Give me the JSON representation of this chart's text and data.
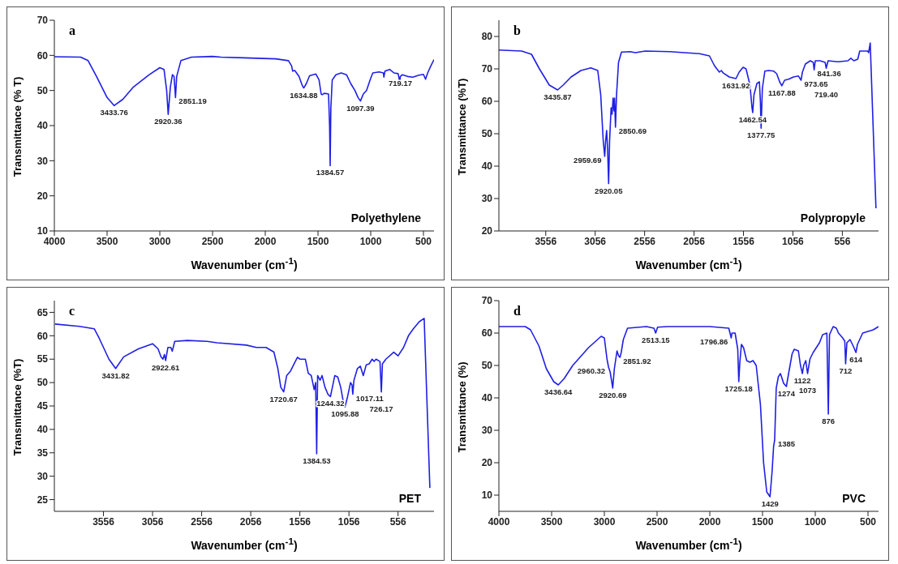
{
  "chart_data": [
    {
      "type": "line",
      "xlabel": "Wavenumber (cm$^{-1}$)",
      "ylabel": "Transmittance (% T)",
      "xlim": [
        4000,
        400
      ],
      "xticks": [
        4000,
        3500,
        3000,
        2500,
        2000,
        1500,
        1000,
        500
      ],
      "ylim": [
        10,
        70
      ],
      "yticks": [
        10,
        20,
        30,
        40,
        50,
        60,
        70
      ],
      "series": [
        {
          "color": "#1f1fe6",
          "x": [
            4000,
            3750,
            3680,
            3600,
            3500,
            3433.76,
            3350,
            3250,
            3100,
            3000,
            2960,
            2935,
            2920.36,
            2900,
            2880,
            2865,
            2851.19,
            2840,
            2800,
            2700,
            2500,
            2420,
            2200,
            1900,
            1780,
            1750,
            1740,
            1720,
            1680,
            1650,
            1634.88,
            1610,
            1580,
            1520,
            1490,
            1470,
            1460,
            1440,
            1400,
            1390,
            1384.57,
            1378,
            1365,
            1330,
            1280,
            1230,
            1190,
            1150,
            1120,
            1097.39,
            1070,
            1040,
            1000,
            980,
            920,
            880,
            875,
            865,
            820,
            780,
            740,
            725,
            719.17,
            700,
            650,
            600,
            550,
            500,
            480,
            460,
            430,
            400
          ],
          "values": [
            59.6,
            59.5,
            58.5,
            54,
            48,
            45.7,
            47.5,
            51,
            54.5,
            56.5,
            56,
            50,
            43.2,
            51,
            54.5,
            54,
            48,
            54,
            58.5,
            59.5,
            59.7,
            59.5,
            59.3,
            59,
            58.5,
            57,
            55.5,
            55.7,
            54,
            51.5,
            50.7,
            52,
            54.2,
            54.7,
            53,
            49,
            48.8,
            49.2,
            49,
            40,
            28.6,
            45,
            53,
            54.5,
            55,
            54.5,
            52,
            50,
            48,
            47,
            49,
            50,
            53.5,
            55,
            55.3,
            55,
            53.8,
            55.5,
            56,
            55,
            54.8,
            52.5,
            54,
            54.5,
            54,
            53.8,
            54.3,
            54.6,
            53.2,
            55,
            57,
            58.8
          ]
        }
      ],
      "annotations": [
        "a",
        "Polyethylene",
        {
          "text": "3433.76",
          "x": 3433.76,
          "y": 45.7
        },
        {
          "text": "2920.36",
          "x": 2920.36,
          "y": 43.2
        },
        {
          "text": "2851.19",
          "x": 2851.19,
          "y": 48
        },
        {
          "text": "1634.88",
          "x": 1634.88,
          "y": 50.7
        },
        {
          "text": "1384.57",
          "x": 1384.57,
          "y": 28.6
        },
        {
          "text": "1097.39",
          "x": 1097.39,
          "y": 47
        },
        {
          "text": "719.17",
          "x": 719.17,
          "y": 54
        }
      ]
    },
    {
      "type": "line",
      "xlabel": "Wavenumber (cm$^{-1}$)",
      "ylabel": "Transmittance (%T)",
      "xlim": [
        4030,
        190
      ],
      "xticks": [
        3556,
        3056,
        2556,
        2056,
        1556,
        1056,
        556
      ],
      "ylim": [
        20,
        85
      ],
      "yticks": [
        20,
        30,
        40,
        50,
        60,
        70,
        80
      ],
      "series": [
        {
          "color": "#1f1fe6",
          "x": [
            4030,
            3800,
            3700,
            3620,
            3520,
            3435.87,
            3380,
            3300,
            3200,
            3100,
            3030,
            3000,
            2975,
            2959.69,
            2950,
            2940,
            2930,
            2920.05,
            2910,
            2895,
            2885,
            2875,
            2865,
            2860,
            2850.69,
            2840,
            2820,
            2790,
            2700,
            2650,
            2550,
            2300,
            2000,
            1900,
            1850,
            1800,
            1780,
            1760,
            1700,
            1631.92,
            1600,
            1560,
            1530,
            1490,
            1470,
            1462.54,
            1450,
            1420,
            1395,
            1385,
            1377.75,
            1365,
            1340,
            1300,
            1250,
            1220,
            1190,
            1167.88,
            1140,
            1100,
            1050,
            1000,
            973.65,
            960,
            930,
            880,
            850,
            841.36,
            830,
            780,
            730,
            719.4,
            700,
            600,
            500,
            470,
            440,
            400,
            380,
            300,
            290,
            274,
            216
          ],
          "values": [
            75.8,
            75.5,
            74.5,
            70,
            65,
            63.5,
            65,
            67.5,
            69.5,
            70.3,
            69.5,
            62,
            48,
            43,
            48,
            51,
            45,
            34.6,
            48,
            58,
            56,
            61,
            57,
            61,
            52,
            62,
            72,
            75.2,
            75.3,
            75,
            75.5,
            75.3,
            74.7,
            74,
            71,
            69,
            69.5,
            68.7,
            67.5,
            67,
            69,
            70.5,
            70,
            65,
            58,
            56.5,
            62,
            65.5,
            66,
            60,
            51.7,
            64,
            69.3,
            69.5,
            69.3,
            68.5,
            66,
            64.8,
            66.5,
            66.8,
            67.5,
            67.8,
            66.5,
            69,
            71.5,
            72.5,
            72,
            69.7,
            72.5,
            72.5,
            72,
            70.2,
            72.5,
            72.2,
            72.5,
            73.3,
            72.5,
            73,
            75.5,
            75.5,
            75,
            78,
            27
          ]
        }
      ],
      "annotations": [
        "b",
        "Polypropyle",
        {
          "text": "3435.87",
          "x": 3435.87,
          "y": 63.5
        },
        {
          "text": "2959.69",
          "x": 2959.69,
          "y": 43
        },
        {
          "text": "2920.05",
          "x": 2920.05,
          "y": 34.6
        },
        {
          "text": "2850.69",
          "x": 2850.69,
          "y": 52
        },
        {
          "text": "1631.92",
          "x": 1631.92,
          "y": 67
        },
        {
          "text": "1462.54",
          "x": 1462.54,
          "y": 56.5
        },
        {
          "text": "1377.75",
          "x": 1377.75,
          "y": 51.7
        },
        {
          "text": "1167.88",
          "x": 1167.88,
          "y": 64.8
        },
        {
          "text": "973.65",
          "x": 973.65,
          "y": 66.5
        },
        {
          "text": "841.36",
          "x": 841.36,
          "y": 69.7
        },
        {
          "text": "719.40",
          "x": 719.4,
          "y": 70.2
        }
      ]
    },
    {
      "type": "line",
      "xlabel": "Wavenumber (cm$^{-1}$)",
      "ylabel": "Transmittance (%T)",
      "xlim": [
        4056,
        190
      ],
      "xticks": [
        3556,
        3056,
        2556,
        2056,
        1556,
        1056,
        556
      ],
      "ylim": [
        22.5,
        67.5
      ],
      "yticks": [
        25,
        30,
        35,
        40,
        45,
        50,
        55,
        60,
        65
      ],
      "series": [
        {
          "color": "#1f1fe6",
          "x": [
            4050,
            3800,
            3650,
            3600,
            3500,
            3431.82,
            3350,
            3200,
            3056,
            3000,
            2970,
            2950,
            2935,
            2922.61,
            2900,
            2870,
            2855,
            2830,
            2700,
            2500,
            2400,
            2100,
            2000,
            1900,
            1820,
            1780,
            1750,
            1720.67,
            1690,
            1650,
            1610,
            1580,
            1556,
            1500,
            1470,
            1440,
            1410,
            1395,
            1384.53,
            1375,
            1350,
            1330,
            1300,
            1270,
            1244.32,
            1200,
            1170,
            1140,
            1110,
            1095.88,
            1070,
            1040,
            1025,
            1017.11,
            1005,
            970,
            940,
            910,
            880,
            850,
            820,
            800,
            780,
            740,
            726.17,
            715,
            680,
            600,
            556,
            500,
            450,
            400,
            340,
            290,
            232
          ],
          "values": [
            62.5,
            62,
            61.5,
            59.5,
            55,
            53,
            55.5,
            57.2,
            58.3,
            57.2,
            55.5,
            55,
            56,
            54.7,
            57.5,
            57.5,
            56.7,
            58.8,
            59,
            58.8,
            58.5,
            58,
            57.5,
            57.5,
            56.5,
            53,
            49,
            48,
            51.5,
            52.5,
            54.2,
            55.4,
            55,
            55,
            52,
            51.5,
            48.5,
            50,
            34.8,
            51.5,
            50.5,
            51.5,
            49,
            47.5,
            47,
            51.5,
            51.2,
            49,
            45.5,
            44.8,
            47,
            50,
            49.5,
            47.5,
            50.5,
            53,
            53.5,
            51.5,
            53.8,
            54,
            55,
            54.5,
            55,
            54.5,
            48,
            54,
            55,
            56.5,
            55.7,
            57.5,
            60,
            61.5,
            63,
            63.7,
            27.5
          ]
        }
      ],
      "annotations": [
        "c",
        "PET",
        {
          "text": "3431.82",
          "x": 3431.82,
          "y": 53
        },
        {
          "text": "2922.61",
          "x": 2922.61,
          "y": 54.7
        },
        {
          "text": "1720.67",
          "x": 1720.67,
          "y": 48
        },
        {
          "text": "1384.53",
          "x": 1384.53,
          "y": 34.8
        },
        {
          "text": "1244.32",
          "x": 1244.32,
          "y": 47
        },
        {
          "text": "1095.88",
          "x": 1095.88,
          "y": 44.8
        },
        {
          "text": "1017.11",
          "x": 1017.11,
          "y": 47.5
        },
        {
          "text": "726.17",
          "x": 726.17,
          "y": 48
        }
      ]
    },
    {
      "type": "line",
      "xlabel": "Wavenumber (cm$^{-1}$)",
      "ylabel": "Transmittance (%)",
      "xlim": [
        4000,
        400
      ],
      "xticks": [
        4000,
        3500,
        3000,
        2500,
        2000,
        1500,
        1000,
        500
      ],
      "ylim": [
        5,
        70
      ],
      "yticks": [
        10,
        20,
        30,
        40,
        50,
        60,
        70
      ],
      "series": [
        {
          "color": "#1f1fe6",
          "x": [
            4000,
            3750,
            3700,
            3620,
            3550,
            3480,
            3436.64,
            3380,
            3300,
            3150,
            3030,
            3000,
            2975,
            2960.32,
            2945,
            2930,
            2920.69,
            2905,
            2880,
            2865,
            2851.92,
            2840,
            2820,
            2780,
            2600,
            2530,
            2513.15,
            2495,
            2400,
            2000,
            1820,
            1796.86,
            1790,
            1760,
            1735,
            1725.18,
            1715,
            1700,
            1680,
            1650,
            1620,
            1590,
            1560,
            1520,
            1490,
            1460,
            1429,
            1410,
            1395,
            1385,
            1370,
            1350,
            1330,
            1300,
            1274,
            1250,
            1220,
            1200,
            1160,
            1140,
            1122,
            1110,
            1090,
            1073,
            1050,
            1020,
            1000,
            960,
            930,
            890,
            876,
            865,
            830,
            800,
            780,
            740,
            720,
            712,
            700,
            670,
            640,
            614,
            600,
            550,
            500,
            450,
            400
          ],
          "values": [
            62,
            62,
            61,
            56,
            49,
            45,
            44,
            46,
            50,
            55.5,
            59,
            58.5,
            52,
            49.5,
            48,
            45,
            43,
            49,
            54.5,
            53,
            52.5,
            54,
            58,
            61.5,
            62,
            61.5,
            60,
            61.8,
            62,
            62,
            61.5,
            58.5,
            60,
            60,
            55,
            45,
            51,
            56.5,
            55.5,
            51.5,
            51,
            51.5,
            50,
            38,
            20,
            11,
            9.5,
            17,
            25,
            27,
            43,
            46.5,
            47.5,
            44.5,
            43.5,
            48,
            53.5,
            55,
            54.5,
            50,
            47.5,
            50,
            51.5,
            47.5,
            52,
            54,
            55,
            57,
            59.5,
            60,
            35,
            59.5,
            62,
            61.5,
            60,
            58.5,
            57.5,
            50.5,
            57,
            58,
            56,
            54,
            56.5,
            60,
            60.5,
            61,
            62
          ]
        }
      ],
      "annotations": [
        "d",
        "PVC",
        {
          "text": "3436.64",
          "x": 3436.64,
          "y": 44
        },
        {
          "text": "2960.32",
          "x": 2960.32,
          "y": 49.5
        },
        {
          "text": "2920.69",
          "x": 2920.69,
          "y": 43
        },
        {
          "text": "2851.92",
          "x": 2851.92,
          "y": 52.5
        },
        {
          "text": "2513.15",
          "x": 2513.15,
          "y": 60
        },
        {
          "text": "1796.86",
          "x": 1796.86,
          "y": 58.5
        },
        {
          "text": "1725.18",
          "x": 1725.18,
          "y": 45
        },
        {
          "text": "1429",
          "x": 1429,
          "y": 9.5
        },
        {
          "text": "1385",
          "x": 1385,
          "y": 27
        },
        {
          "text": "1274",
          "x": 1274,
          "y": 43.5
        },
        {
          "text": "1122",
          "x": 1122,
          "y": 47.5
        },
        {
          "text": "1073",
          "x": 1073,
          "y": 47.5
        },
        {
          "text": "876",
          "x": 876,
          "y": 35
        },
        {
          "text": "712",
          "x": 712,
          "y": 50.5
        },
        {
          "text": "614",
          "x": 614,
          "y": 54
        }
      ]
    }
  ]
}
